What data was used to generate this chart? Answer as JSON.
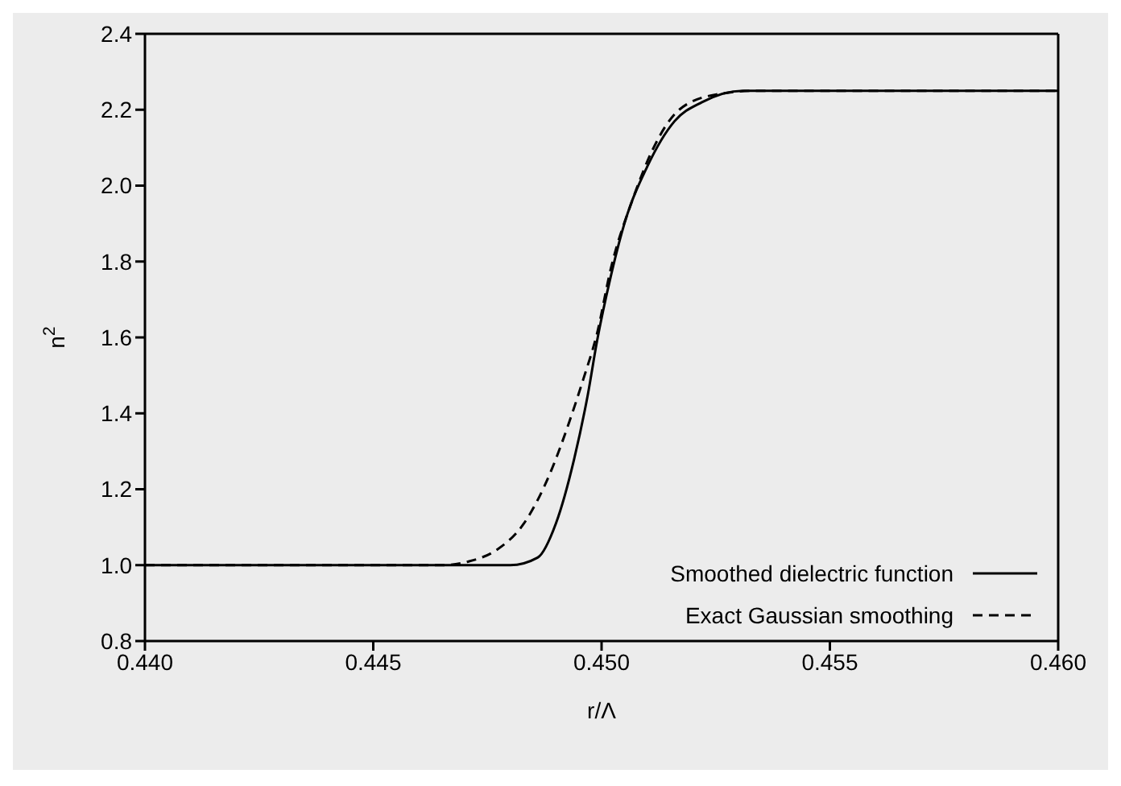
{
  "chart_data": {
    "type": "line",
    "xlabel": "r/Λ",
    "ylabel": "n$^{2}$",
    "xlim": [
      0.44,
      0.46
    ],
    "xticks": [
      {
        "value": 0.44,
        "label": "0.440"
      },
      {
        "value": 0.445,
        "label": "0.445"
      },
      {
        "value": 0.45,
        "label": "0.450"
      },
      {
        "value": 0.455,
        "label": "0.455"
      },
      {
        "value": 0.46,
        "label": "0.460"
      }
    ],
    "ylim": [
      0.8,
      2.4
    ],
    "yticks": [
      {
        "value": 0.8,
        "label": "0.8"
      },
      {
        "value": 1,
        "label": "1.0"
      },
      {
        "value": 1.2,
        "label": "1.2"
      },
      {
        "value": 1.4,
        "label": "1.4"
      },
      {
        "value": 1.6,
        "label": "1.6"
      },
      {
        "value": 1.8,
        "label": "1.8"
      },
      {
        "value": 2,
        "label": "2.0"
      },
      {
        "value": 2.2,
        "label": "2.2"
      },
      {
        "value": 2.4,
        "label": "2.4"
      }
    ],
    "grid": false,
    "legend": "bottom right",
    "marker": "none",
    "series": [
      {
        "name": "Smoothed dielectric function",
        "color": "#000000",
        "line_style": "solid",
        "x": [
          0.44,
          0.448,
          0.4486,
          0.449,
          0.4494,
          0.4497,
          0.4499,
          0.4502,
          0.4505,
          0.451,
          0.4516,
          0.4522,
          0.4531,
          0.4537,
          0.46
        ],
        "values": [
          1,
          1,
          1.02,
          1.11,
          1.28,
          1.45,
          1.59,
          1.76,
          1.9,
          2.05,
          2.17,
          2.22,
          2.25,
          2.25,
          2.25
        ]
      },
      {
        "name": "Exact Gaussian smoothing",
        "color": "#000000",
        "line_style": "dashed",
        "x": [
          0.44,
          0.4465,
          0.4471,
          0.4477,
          0.4483,
          0.4489,
          0.4493,
          0.4496,
          0.4499,
          0.4502,
          0.4507,
          0.4511,
          0.4517,
          0.4525,
          0.4534,
          0.46
        ],
        "values": [
          1,
          1,
          1.01,
          1.04,
          1.11,
          1.25,
          1.38,
          1.49,
          1.61,
          1.78,
          1.97,
          2.09,
          2.2,
          2.24,
          2.25,
          2.25
        ]
      }
    ]
  }
}
